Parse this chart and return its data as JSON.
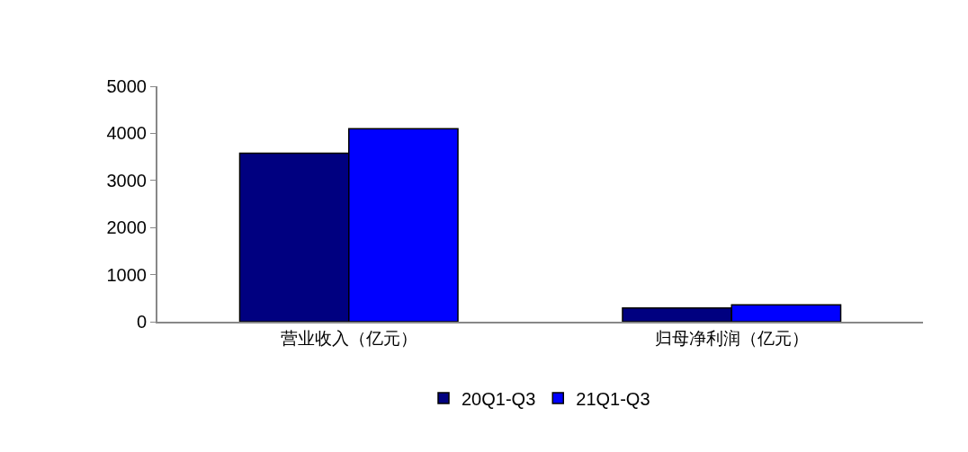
{
  "chart_data": {
    "type": "bar",
    "categories": [
      "营业收入（亿元）",
      "归母净利润（亿元）"
    ],
    "series": [
      {
        "name": "20Q1-Q3",
        "color": "#000080",
        "values": [
          3580,
          290
        ]
      },
      {
        "name": "21Q1-Q3",
        "color": "#0000ff",
        "values": [
          4100,
          360
        ]
      }
    ],
    "ylim": [
      0,
      5000
    ],
    "yticks": [
      0,
      1000,
      2000,
      3000,
      4000,
      5000
    ],
    "legend": "bottom"
  }
}
